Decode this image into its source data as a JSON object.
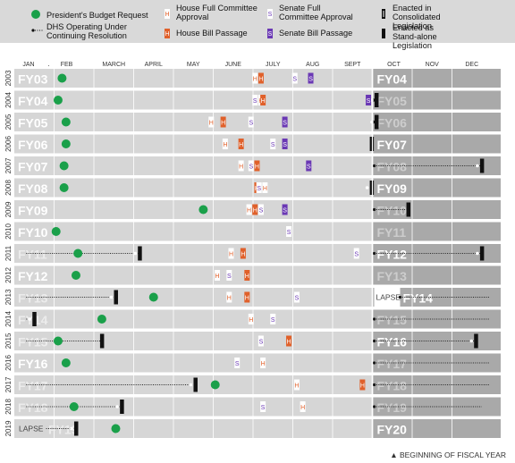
{
  "chart_data": {
    "type": "timeline",
    "legend": {
      "placement": "top",
      "items": [
        {
          "key": "budget",
          "text": "President's Budget Request",
          "color": "#1aa04a"
        },
        {
          "key": "cr",
          "text": "DHS Operating Under Continuing Resolution"
        },
        {
          "key": "house_committee",
          "text": "House Full Committee Approval",
          "glyph": "H",
          "color": "#e0602a"
        },
        {
          "key": "house_passage",
          "text": "House Bill Passage",
          "glyph": "H",
          "color": "#e0602a"
        },
        {
          "key": "senate_committee",
          "text": "Senate Full Committee Approval",
          "glyph": "S",
          "color": "#6a38b4"
        },
        {
          "key": "senate_passage",
          "text": "Senate Bill Passage",
          "glyph": "S",
          "color": "#6a38b4"
        },
        {
          "key": "enacted_consolidated",
          "text": "Enacted in Consolidated Legislation"
        },
        {
          "key": "enacted_standalone",
          "text": "Enacted as Stand-alone Legislation"
        }
      ]
    },
    "months": [
      "JAN",
      "FEB",
      "MARCH",
      "APRIL",
      "MAY",
      "JUNE",
      "JULY",
      "AUG",
      "SEPT",
      "OCT",
      "NOV",
      "DEC"
    ],
    "footnote": "▲ BEGINNING OF FISCAL YEAR",
    "rows": [
      {
        "year": "2003",
        "left_label": "FY03",
        "right_label": "FY04",
        "left_faded": false,
        "right_faded": false,
        "budget": 1.2,
        "cr_left": null,
        "cr_right": null,
        "enact_left": null,
        "enact_right": null,
        "hc": [
          6.05
        ],
        "hp": [
          6.2
        ],
        "sc": [
          7.05
        ],
        "sp": [
          7.45
        ],
        "right_lapse": false,
        "left_lapse": false
      },
      {
        "year": "2004",
        "left_label": "FY04",
        "right_label": "FY05",
        "left_faded": false,
        "right_faded": true,
        "budget": 1.1,
        "cr_left": null,
        "cr_right": [
          9.0,
          9.1
        ],
        "enact_left": null,
        "enact_right": {
          "x": 9.1,
          "type": "c"
        },
        "hc": [
          6.2
        ],
        "hp": [
          6.25
        ],
        "sc": [
          6.05
        ],
        "sp": [
          8.9
        ],
        "right_lapse": false,
        "left_lapse": false
      },
      {
        "year": "2005",
        "left_label": "FY05",
        "right_label": "FY06",
        "left_faded": false,
        "right_faded": true,
        "budget": 1.3,
        "cr_left": null,
        "cr_right": [
          9.0,
          9.1
        ],
        "enact_left": null,
        "enact_right": {
          "x": 9.1,
          "type": "c"
        },
        "hc": [
          4.95
        ],
        "hp": [
          5.25
        ],
        "sc": [
          5.95
        ],
        "sp": [
          6.8
        ],
        "right_lapse": false,
        "left_lapse": false
      },
      {
        "year": "2006",
        "left_label": "FY06",
        "right_label": "FY07",
        "left_faded": false,
        "right_faded": false,
        "budget": 1.3,
        "cr_left": null,
        "cr_right": null,
        "enact_left": null,
        "enact_right": {
          "x": 8.98,
          "type": "s"
        },
        "hc": [
          5.3
        ],
        "hp": [
          5.7
        ],
        "sc": [
          6.5
        ],
        "sp": [
          6.8
        ],
        "right_lapse": false,
        "left_lapse": false
      },
      {
        "year": "2007",
        "left_label": "FY07",
        "right_label": "FY08",
        "left_faded": false,
        "right_faded": true,
        "budget": 1.25,
        "cr_left": null,
        "cr_right": [
          9.0,
          11.75
        ],
        "enact_left": null,
        "enact_right": {
          "x": 11.75,
          "type": "c"
        },
        "hc": [
          5.7
        ],
        "hp": [
          6.1
        ],
        "sc": [
          5.95
        ],
        "sp": [
          7.4
        ],
        "right_lapse": false,
        "left_lapse": false
      },
      {
        "year": "2008",
        "left_label": "FY08",
        "right_label": "FY09",
        "left_faded": false,
        "right_faded": false,
        "budget": 1.25,
        "cr_left": null,
        "cr_right": null,
        "enact_left": null,
        "enact_right": {
          "x": 8.98,
          "type": "c"
        },
        "hc": [
          6.3
        ],
        "hp": [
          6.1
        ],
        "sc": [
          6.15
        ],
        "sp": [],
        "right_lapse": false,
        "left_lapse": false
      },
      {
        "year": "2009",
        "left_label": "FY09",
        "right_label": "FY10",
        "left_faded": false,
        "right_faded": true,
        "budget": 4.75,
        "cr_left": null,
        "cr_right": [
          9.0,
          9.9
        ],
        "enact_left": null,
        "enact_right": {
          "x": 9.9,
          "type": "s"
        },
        "hc": [
          5.9
        ],
        "hp": [
          6.05
        ],
        "sc": [
          6.2
        ],
        "sp": [
          6.8
        ],
        "right_lapse": false,
        "left_lapse": false
      },
      {
        "year": "2010",
        "left_label": "FY10",
        "right_label": "FY11",
        "left_faded": false,
        "right_faded": true,
        "budget": 1.05,
        "cr_left": null,
        "cr_right": null,
        "enact_left": null,
        "enact_right": null,
        "hc": [],
        "hp": [],
        "sc": [
          6.9
        ],
        "sp": [],
        "right_lapse": false,
        "left_lapse": false
      },
      {
        "year": "2011",
        "left_label": "FY11",
        "right_label": "FY12",
        "left_faded": true,
        "right_faded": false,
        "budget": 1.6,
        "cr_left": [
          0.3,
          3.15
        ],
        "cr_right": [
          9.0,
          11.75
        ],
        "enact_left": {
          "x": 3.15,
          "type": "c"
        },
        "enact_right": {
          "x": 11.75,
          "type": "c"
        },
        "hc": [
          5.45
        ],
        "hp": [
          5.75
        ],
        "sc": [
          8.6
        ],
        "sp": [],
        "right_lapse": false,
        "left_lapse": false
      },
      {
        "year": "2012",
        "left_label": "FY12",
        "right_label": "FY13",
        "left_faded": false,
        "right_faded": true,
        "budget": 1.55,
        "cr_left": null,
        "cr_right": null,
        "enact_left": null,
        "enact_right": null,
        "hc": [
          5.1
        ],
        "hp": [
          5.85
        ],
        "sc": [
          5.4
        ],
        "sp": [],
        "right_lapse": false,
        "left_lapse": false
      },
      {
        "year": "2013",
        "left_label": "FY13",
        "right_label": "FY14",
        "left_faded": true,
        "right_faded": false,
        "budget": 3.5,
        "cr_left": [
          0.3,
          2.55
        ],
        "cr_right": [
          9.65,
          11.95
        ],
        "enact_left": {
          "x": 2.55,
          "type": "c"
        },
        "enact_right": null,
        "hc": [
          5.4
        ],
        "hp": [
          5.85
        ],
        "sc": [
          7.1
        ],
        "sp": [],
        "right_lapse": true,
        "left_lapse": false
      },
      {
        "year": "2014",
        "left_label": "FY14",
        "right_label": "FY15",
        "left_faded": true,
        "right_faded": true,
        "budget": 2.2,
        "cr_left": [
          0.3,
          0.5
        ],
        "cr_right": [
          9.0,
          11.95
        ],
        "enact_left": {
          "x": 0.5,
          "type": "c"
        },
        "enact_right": null,
        "hc": [
          5.95
        ],
        "hp": [],
        "sc": [
          6.5
        ],
        "sp": [],
        "right_lapse": false,
        "left_lapse": false
      },
      {
        "year": "2015",
        "left_label": "FY15",
        "right_label": "FY16",
        "left_faded": true,
        "right_faded": false,
        "budget": 1.1,
        "cr_left": [
          0.3,
          2.2
        ],
        "cr_right": [
          9.0,
          11.6
        ],
        "enact_left": {
          "x": 2.2,
          "type": "s"
        },
        "enact_right": {
          "x": 11.6,
          "type": "c"
        },
        "hc": [],
        "hp": [
          6.9
        ],
        "sc": [
          6.2
        ],
        "sp": [],
        "right_lapse": false,
        "left_lapse": false
      },
      {
        "year": "2016",
        "left_label": "FY16",
        "right_label": "FY17",
        "left_faded": false,
        "right_faded": true,
        "budget": 1.3,
        "cr_left": null,
        "cr_right": [
          9.0,
          11.95
        ],
        "enact_left": null,
        "enact_right": null,
        "hc": [
          6.25
        ],
        "hp": [],
        "sc": [
          5.6
        ],
        "sp": [],
        "right_lapse": false,
        "left_lapse": false
      },
      {
        "year": "2017",
        "left_label": "FY17",
        "right_label": "FY18",
        "left_faded": true,
        "right_faded": true,
        "budget": 5.05,
        "cr_left": [
          0.3,
          4.55
        ],
        "cr_right": [
          9.0,
          11.95
        ],
        "enact_left": {
          "x": 4.55,
          "type": "c"
        },
        "enact_right": null,
        "hc": [
          7.1
        ],
        "hp": [
          8.75
        ],
        "sc": [],
        "sp": [],
        "right_lapse": false,
        "left_lapse": false
      },
      {
        "year": "2018",
        "left_label": "FY18",
        "right_label": "FY19",
        "left_faded": true,
        "right_faded": true,
        "budget": 1.5,
        "cr_left": [
          0.3,
          2.7
        ],
        "cr_right": [
          9.0,
          11.75
        ],
        "enact_left": {
          "x": 2.7,
          "type": "c"
        },
        "enact_right": null,
        "hc": [
          7.25
        ],
        "hp": [],
        "sc": [
          6.25
        ],
        "sp": [],
        "right_lapse": false,
        "left_lapse": false
      },
      {
        "year": "2019",
        "left_label": "FY19",
        "right_label": "FY20",
        "left_faded": true,
        "right_faded": false,
        "budget": 2.55,
        "cr_left": [
          0.8,
          1.55
        ],
        "cr_right": null,
        "enact_left": {
          "x": 1.55,
          "type": "c"
        },
        "enact_right": null,
        "hc": [],
        "hp": [],
        "sc": [],
        "sp": [],
        "right_lapse": false,
        "left_lapse": true
      }
    ],
    "lapse_text": "LAPSE"
  }
}
